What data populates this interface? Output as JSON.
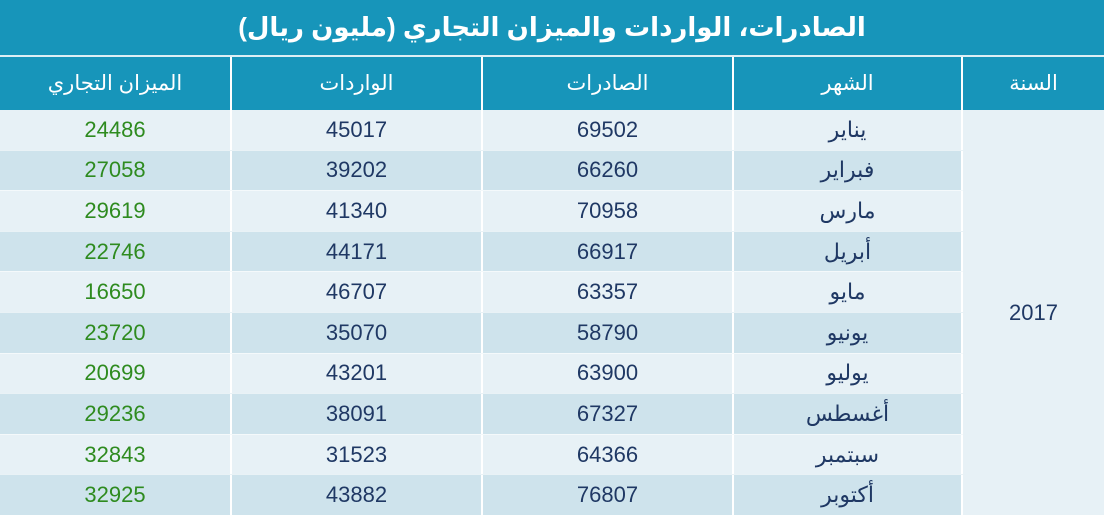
{
  "title": "الصادرات، الواردات والميزان التجاري (مليون ريال)",
  "header": {
    "year": "السنة",
    "month": "الشهر",
    "exports": "الصادرات",
    "imports": "الواردات",
    "balance": "الميزان التجاري"
  },
  "year": "2017",
  "rows": [
    {
      "month": "يناير",
      "exports": "69502",
      "imports": "45017",
      "balance": "24486"
    },
    {
      "month": "فبراير",
      "exports": "66260",
      "imports": "39202",
      "balance": "27058"
    },
    {
      "month": "مارس",
      "exports": "70958",
      "imports": "41340",
      "balance": "29619"
    },
    {
      "month": "أبريل",
      "exports": "66917",
      "imports": "44171",
      "balance": "22746"
    },
    {
      "month": "مايو",
      "exports": "63357",
      "imports": "46707",
      "balance": "16650"
    },
    {
      "month": "يونيو",
      "exports": "58790",
      "imports": "35070",
      "balance": "23720"
    },
    {
      "month": "يوليو",
      "exports": "63900",
      "imports": "43201",
      "balance": "20699"
    },
    {
      "month": "أغسطس",
      "exports": "67327",
      "imports": "38091",
      "balance": "29236"
    },
    {
      "month": "سبتمبر",
      "exports": "64366",
      "imports": "31523",
      "balance": "32843"
    },
    {
      "month": "أكتوبر",
      "exports": "76807",
      "imports": "43882",
      "balance": "32925"
    }
  ],
  "colors": {
    "header_teal": "#1795BA",
    "row_light": "#E7F1F6",
    "row_dark": "#CEE3EC",
    "text_navy": "#1F3864",
    "balance_green": "#2E8B1F",
    "separator_white": "#FFFFFF"
  },
  "chart_data": {
    "type": "table",
    "title": "الصادرات، الواردات والميزان التجاري (مليون ريال)",
    "columns": [
      "السنة",
      "الشهر",
      "الصادرات",
      "الواردات",
      "الميزان التجاري"
    ],
    "year": 2017,
    "categories": [
      "يناير",
      "فبراير",
      "مارس",
      "أبريل",
      "مايو",
      "يونيو",
      "يوليو",
      "أغسطس",
      "سبتمبر",
      "أكتوبر"
    ],
    "series": [
      {
        "name": "الصادرات",
        "values": [
          69502,
          66260,
          70958,
          66917,
          63357,
          58790,
          63900,
          67327,
          64366,
          76807
        ]
      },
      {
        "name": "الواردات",
        "values": [
          45017,
          39202,
          41340,
          44171,
          46707,
          35070,
          43201,
          38091,
          31523,
          43882
        ]
      },
      {
        "name": "الميزان التجاري",
        "values": [
          24486,
          27058,
          29619,
          22746,
          16650,
          23720,
          20699,
          29236,
          32843,
          32925
        ]
      }
    ]
  }
}
